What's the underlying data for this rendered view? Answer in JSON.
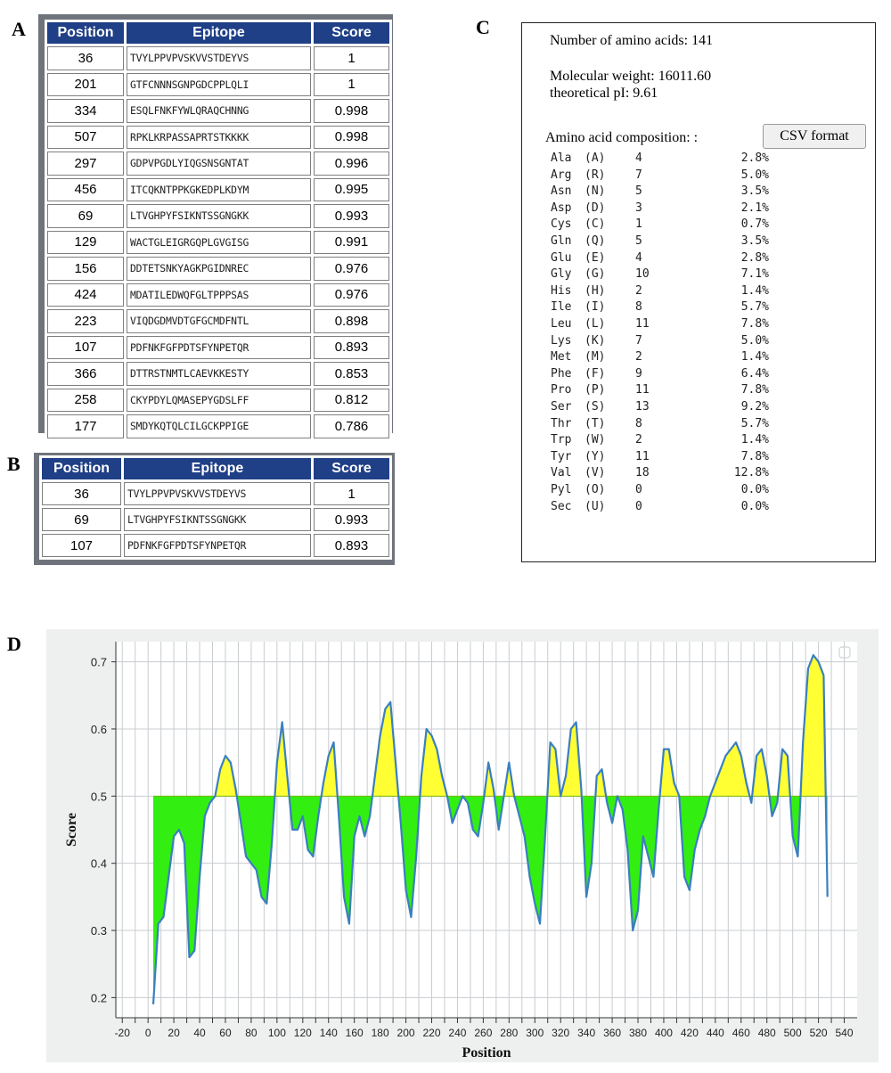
{
  "panels": {
    "a": "A",
    "b": "B",
    "c": "C",
    "d": "D"
  },
  "table_a": {
    "headers": [
      "Position",
      "Epitope",
      "Score"
    ],
    "rows": [
      {
        "position": "36",
        "epitope": "TVYLPPVPVSKVVSTDEYVS",
        "score": "1"
      },
      {
        "position": "201",
        "epitope": "GTFCNNNSGNPGDCPPLQLI",
        "score": "1"
      },
      {
        "position": "334",
        "epitope": "ESQLFNKFYWLQRAQCHNNG",
        "score": "0.998"
      },
      {
        "position": "507",
        "epitope": "RPKLKRPASSAPRTSTKKKK",
        "score": "0.998"
      },
      {
        "position": "297",
        "epitope": "GDPVPGDLYIQGSNSGNTAT",
        "score": "0.996"
      },
      {
        "position": "456",
        "epitope": "ITCQKNTPPKGKEDPLKDYM",
        "score": "0.995"
      },
      {
        "position": "69",
        "epitope": "LTVGHPYFSIKNTSSGNGKK",
        "score": "0.993"
      },
      {
        "position": "129",
        "epitope": "WACTGLEIGRGQPLGVGISG",
        "score": "0.991"
      },
      {
        "position": "156",
        "epitope": "DDTETSNKYAGKPGIDNREC",
        "score": "0.976"
      },
      {
        "position": "424",
        "epitope": "MDATILEDWQFGLTPPPSAS",
        "score": "0.976"
      },
      {
        "position": "223",
        "epitope": "VIQDGDMVDTGFGCMDFNTL",
        "score": "0.898"
      },
      {
        "position": "107",
        "epitope": "PDFNKFGFPDTSFYNPETQR",
        "score": "0.893"
      },
      {
        "position": "366",
        "epitope": "DTTRSTNMTLCAEVKKESTY",
        "score": "0.853"
      },
      {
        "position": "258",
        "epitope": "CKYPDYLQMASEPYGDSLFF",
        "score": "0.812"
      },
      {
        "position": "177",
        "epitope": "SMDYKQTQLCILGCKPPIGE",
        "score": "0.786"
      }
    ]
  },
  "table_b": {
    "headers": [
      "Position",
      "Epitope",
      "Score"
    ],
    "rows": [
      {
        "position": "36",
        "epitope": "TVYLPPVPVSKVVSTDEYVS",
        "score": "1"
      },
      {
        "position": "69",
        "epitope": "LTVGHPYFSIKNTSSGNGKK",
        "score": "0.993"
      },
      {
        "position": "107",
        "epitope": "PDFNKFGFPDTSFYNPETQR",
        "score": "0.893"
      }
    ]
  },
  "protparam": {
    "num_aa": "Number of amino acids: 141",
    "mol_weight": "Molecular weight: 16011.60",
    "pi": "theoretical pI: 9.61",
    "composition_label": "Amino acid composition: :",
    "csv_button": "CSV format",
    "composition": [
      {
        "name": "Ala",
        "code": "(A)",
        "count": "4",
        "pct": "2.8%"
      },
      {
        "name": "Arg",
        "code": "(R)",
        "count": "7",
        "pct": "5.0%"
      },
      {
        "name": "Asn",
        "code": "(N)",
        "count": "5",
        "pct": "3.5%"
      },
      {
        "name": "Asp",
        "code": "(D)",
        "count": "3",
        "pct": "2.1%"
      },
      {
        "name": "Cys",
        "code": "(C)",
        "count": "1",
        "pct": "0.7%"
      },
      {
        "name": "Gln",
        "code": "(Q)",
        "count": "5",
        "pct": "3.5%"
      },
      {
        "name": "Glu",
        "code": "(E)",
        "count": "4",
        "pct": "2.8%"
      },
      {
        "name": "Gly",
        "code": "(G)",
        "count": "10",
        "pct": "7.1%"
      },
      {
        "name": "His",
        "code": "(H)",
        "count": "2",
        "pct": "1.4%"
      },
      {
        "name": "Ile",
        "code": "(I)",
        "count": "8",
        "pct": "5.7%"
      },
      {
        "name": "Leu",
        "code": "(L)",
        "count": "11",
        "pct": "7.8%"
      },
      {
        "name": "Lys",
        "code": "(K)",
        "count": "7",
        "pct": "5.0%"
      },
      {
        "name": "Met",
        "code": "(M)",
        "count": "2",
        "pct": "1.4%"
      },
      {
        "name": "Phe",
        "code": "(F)",
        "count": "9",
        "pct": "6.4%"
      },
      {
        "name": "Pro",
        "code": "(P)",
        "count": "11",
        "pct": "7.8%"
      },
      {
        "name": "Ser",
        "code": "(S)",
        "count": "13",
        "pct": "9.2%"
      },
      {
        "name": "Thr",
        "code": "(T)",
        "count": "8",
        "pct": "5.7%"
      },
      {
        "name": "Trp",
        "code": "(W)",
        "count": "2",
        "pct": "1.4%"
      },
      {
        "name": "Tyr",
        "code": "(Y)",
        "count": "11",
        "pct": "7.8%"
      },
      {
        "name": "Val",
        "code": "(V)",
        "count": "18",
        "pct": "12.8%"
      },
      {
        "name": "Pyl",
        "code": "(O)",
        "count": "0",
        "pct": "0.0%"
      },
      {
        "name": "Sec",
        "code": "(U)",
        "count": "0",
        "pct": "0.0%"
      }
    ]
  },
  "colors": {
    "header_bg": "#1f3f86",
    "fill_above": "#ffff33",
    "fill_below": "#33ee11",
    "line": "#3a7fc0",
    "chart_bg": "#edf0ee"
  },
  "chart_data": {
    "type": "area",
    "title": "",
    "xlabel": "Position",
    "ylabel": "Score",
    "threshold": 0.5,
    "xlim": [
      -25,
      550
    ],
    "ylim": [
      0.17,
      0.73
    ],
    "x_ticks": [
      -20,
      -10,
      0,
      10,
      20,
      30,
      40,
      50,
      60,
      70,
      80,
      90,
      100,
      110,
      120,
      130,
      140,
      150,
      160,
      170,
      180,
      190,
      200,
      210,
      220,
      230,
      240,
      250,
      260,
      270,
      280,
      290,
      300,
      310,
      320,
      330,
      340,
      350,
      360,
      370,
      380,
      390,
      400,
      410,
      420,
      430,
      440,
      450,
      460,
      470,
      480,
      490,
      500,
      510,
      520,
      530,
      540
    ],
    "x_tick_labels": [
      "-20",
      "0",
      "20",
      "40",
      "60",
      "80",
      "100",
      "120",
      "140",
      "160",
      "180",
      "200",
      "220",
      "240",
      "260",
      "280",
      "300",
      "320",
      "340",
      "360",
      "380",
      "400",
      "420",
      "440",
      "460",
      "480",
      "500",
      "520",
      "540"
    ],
    "y_ticks": [
      0.2,
      0.3,
      0.4,
      0.5,
      0.6,
      0.7
    ],
    "grid": true,
    "series": [
      {
        "x": [
          4,
          8,
          12,
          16,
          20,
          24,
          28,
          32,
          36,
          40,
          44,
          48,
          52,
          56,
          60,
          64,
          68,
          72,
          76,
          80,
          84,
          88,
          92,
          96,
          100,
          104,
          108,
          112,
          116,
          120,
          124,
          128,
          132,
          136,
          140,
          144,
          148,
          152,
          156,
          160,
          164,
          168,
          172,
          176,
          180,
          184,
          188,
          192,
          196,
          200,
          204,
          208,
          212,
          216,
          220,
          224,
          228,
          232,
          236,
          240,
          244,
          248,
          252,
          256,
          260,
          264,
          268,
          272,
          276,
          280,
          284,
          288,
          292,
          296,
          300,
          304,
          308,
          312,
          316,
          320,
          324,
          328,
          332,
          336,
          340,
          344,
          348,
          352,
          356,
          360,
          364,
          368,
          372,
          376,
          380,
          384,
          388,
          392,
          396,
          400,
          404,
          408,
          412,
          416,
          420,
          424,
          428,
          432,
          436,
          440,
          444,
          448,
          452,
          456,
          460,
          464,
          468,
          472,
          476,
          480,
          484,
          488,
          492,
          496,
          500,
          504,
          508,
          512,
          516,
          520,
          524,
          527
        ],
        "y": [
          0.19,
          0.31,
          0.32,
          0.38,
          0.44,
          0.45,
          0.43,
          0.26,
          0.27,
          0.38,
          0.47,
          0.49,
          0.5,
          0.54,
          0.56,
          0.55,
          0.51,
          0.46,
          0.41,
          0.4,
          0.39,
          0.35,
          0.34,
          0.43,
          0.55,
          0.61,
          0.53,
          0.45,
          0.45,
          0.47,
          0.42,
          0.41,
          0.47,
          0.52,
          0.56,
          0.58,
          0.47,
          0.35,
          0.31,
          0.44,
          0.47,
          0.44,
          0.47,
          0.53,
          0.59,
          0.63,
          0.64,
          0.55,
          0.46,
          0.36,
          0.32,
          0.41,
          0.53,
          0.6,
          0.59,
          0.57,
          0.53,
          0.5,
          0.46,
          0.48,
          0.5,
          0.49,
          0.45,
          0.44,
          0.49,
          0.55,
          0.51,
          0.45,
          0.5,
          0.55,
          0.5,
          0.47,
          0.44,
          0.38,
          0.34,
          0.31,
          0.44,
          0.58,
          0.57,
          0.5,
          0.53,
          0.6,
          0.61,
          0.51,
          0.35,
          0.4,
          0.53,
          0.54,
          0.49,
          0.46,
          0.5,
          0.48,
          0.42,
          0.3,
          0.33,
          0.44,
          0.41,
          0.38,
          0.48,
          0.57,
          0.57,
          0.52,
          0.5,
          0.38,
          0.36,
          0.42,
          0.45,
          0.47,
          0.5,
          0.52,
          0.54,
          0.56,
          0.57,
          0.58,
          0.56,
          0.52,
          0.49,
          0.56,
          0.57,
          0.53,
          0.47,
          0.49,
          0.57,
          0.56,
          0.44,
          0.41,
          0.58,
          0.69,
          0.71,
          0.7,
          0.68,
          0.35
        ]
      }
    ]
  }
}
